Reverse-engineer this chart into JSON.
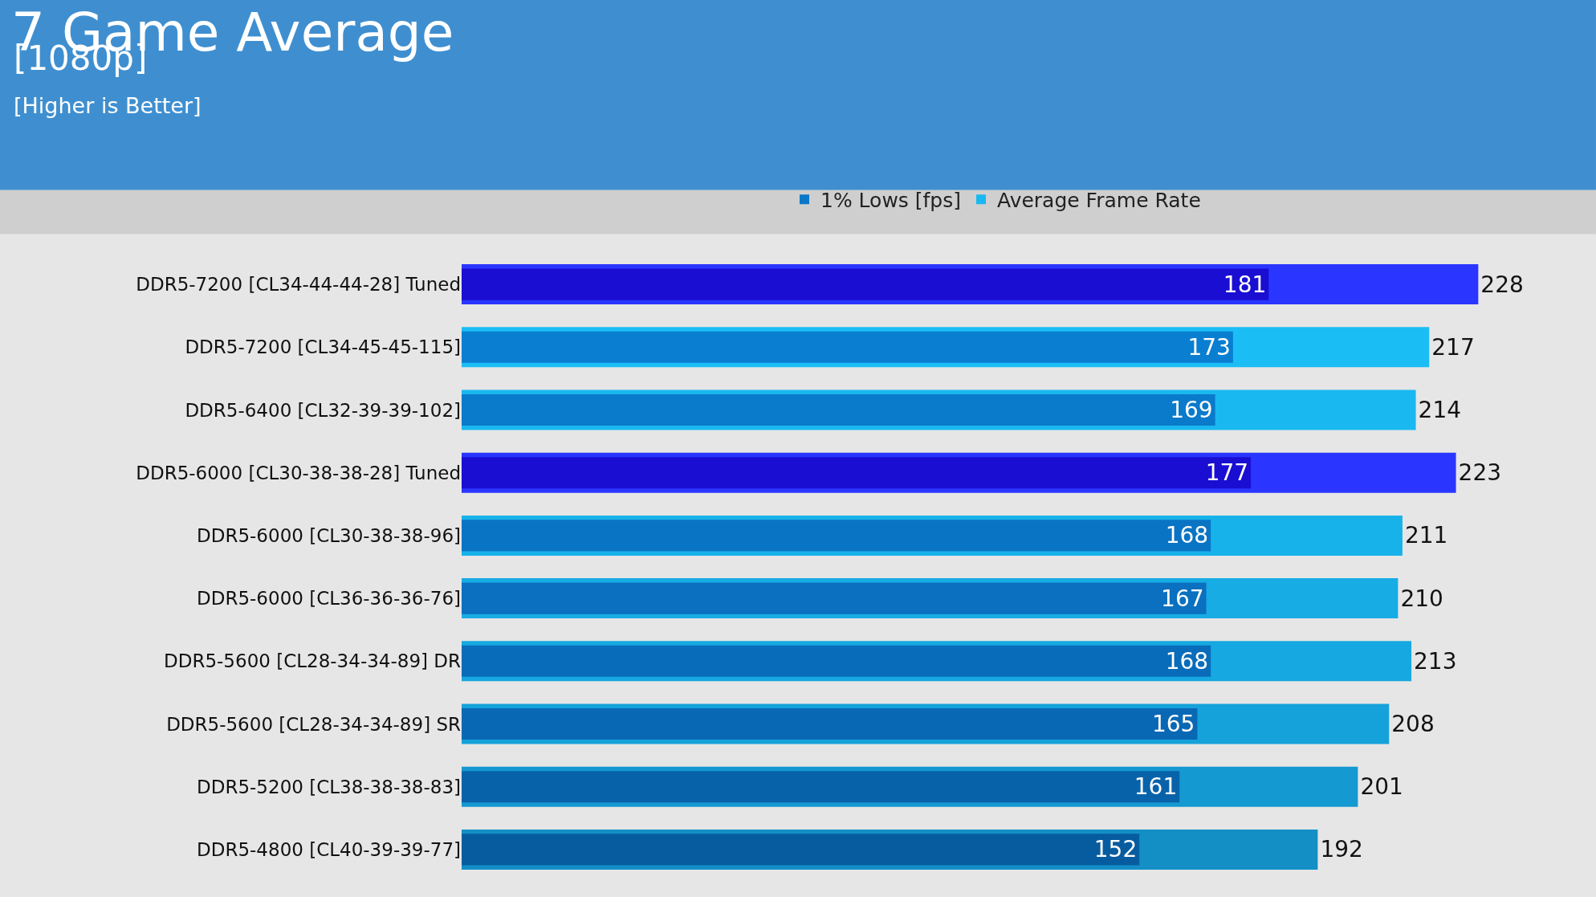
{
  "chart_data": {
    "type": "bar",
    "orientation": "horizontal",
    "title": "7 Game Average",
    "subtitle": "[1080p]",
    "annotations": [
      "[Higher is Better]"
    ],
    "categories": [
      "DDR5-7200 [CL34-44-44-28] Tuned",
      "DDR5-7200 [CL34-45-45-115]",
      "DDR5-6400 [CL32-39-39-102]",
      "DDR5-6000 [CL30-38-38-28] Tuned",
      "DDR5-6000 [CL30-38-38-96]",
      "DDR5-6000 [CL36-36-36-76]",
      "DDR5-5600 [CL28-34-34-89] DR",
      "DDR5-5600 [CL28-34-34-89] SR",
      "DDR5-5200 [CL38-38-38-83]",
      "DDR5-4800 [CL40-39-39-77]"
    ],
    "series": [
      {
        "name": "Average Frame Rate",
        "color": "#1ab8f0",
        "colors": [
          "#2a36ff",
          "#1bbdf5",
          "#1ab8f0",
          "#2a36ff",
          "#18b2ea",
          "#17ace4",
          "#16a8e0",
          "#15a2da",
          "#1499d0",
          "#138fc6"
        ],
        "values": [
          228,
          217,
          214,
          223,
          211,
          210,
          213,
          208,
          201,
          192
        ]
      },
      {
        "name": "1% Lows [fps]",
        "color": "#0a78c8",
        "colors": [
          "#1a0ed2",
          "#0a7ed0",
          "#0a7acb",
          "#1a0ed2",
          "#0a74c4",
          "#0a70bf",
          "#096cba",
          "#0968b4",
          "#0862aa",
          "#075ca0"
        ],
        "values": [
          181,
          173,
          169,
          177,
          168,
          167,
          168,
          165,
          161,
          152
        ]
      }
    ],
    "data_labels": true,
    "grid": false,
    "legend": "top"
  }
}
